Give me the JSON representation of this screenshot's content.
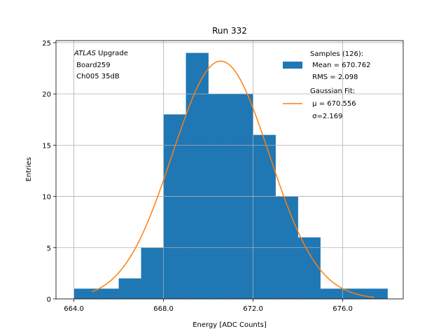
{
  "chart_data": {
    "type": "bar",
    "title": "Run 332",
    "xlabel": "Energy [ADC Counts]",
    "ylabel": "Entries",
    "xlim": [
      663.2,
      678.7
    ],
    "ylim": [
      0,
      25.2
    ],
    "x_ticks": [
      664,
      668,
      672,
      676
    ],
    "x_tick_labels": [
      "664.0",
      "668.0",
      "672.0",
      "676.0"
    ],
    "y_ticks": [
      0,
      5,
      10,
      15,
      20,
      25
    ],
    "y_tick_labels": [
      "0",
      "5",
      "10",
      "15",
      "20",
      "25"
    ],
    "grid": true,
    "bins": [
      {
        "x0": 664,
        "x1": 665,
        "value": 1
      },
      {
        "x0": 665,
        "x1": 666,
        "value": 1
      },
      {
        "x0": 666,
        "x1": 667,
        "value": 2
      },
      {
        "x0": 667,
        "x1": 668,
        "value": 5
      },
      {
        "x0": 668,
        "x1": 669,
        "value": 18
      },
      {
        "x0": 669,
        "x1": 670,
        "value": 24
      },
      {
        "x0": 670,
        "x1": 671,
        "value": 20
      },
      {
        "x0": 671,
        "x1": 672,
        "value": 20
      },
      {
        "x0": 672,
        "x1": 673,
        "value": 16
      },
      {
        "x0": 673,
        "x1": 674,
        "value": 10
      },
      {
        "x0": 674,
        "x1": 675,
        "value": 6
      },
      {
        "x0": 675,
        "x1": 676,
        "value": 1
      },
      {
        "x0": 676,
        "x1": 677,
        "value": 1
      },
      {
        "x0": 677,
        "x1": 678,
        "value": 1
      }
    ],
    "fit": {
      "mu": 670.556,
      "sigma": 2.169,
      "amplitude": 23.2,
      "x_range": [
        664.8,
        677.4
      ]
    },
    "colors": {
      "bars": "#1f77b4",
      "fit": "#ff7f0e",
      "grid": "#b0b0b0"
    },
    "annotation": {
      "line1_italic": "ATLAS",
      "line1_rest": " Upgrade",
      "line2": " Board259",
      "line3": " Ch005 35dB"
    },
    "legend": {
      "position": "top-right",
      "samples_lines": [
        "Samples (126):",
        " Mean = 670.762",
        " RMS = 2.098"
      ],
      "fit_lines": [
        "Gaussian Fit:",
        " μ = 670.556",
        " σ=2.169"
      ]
    }
  }
}
